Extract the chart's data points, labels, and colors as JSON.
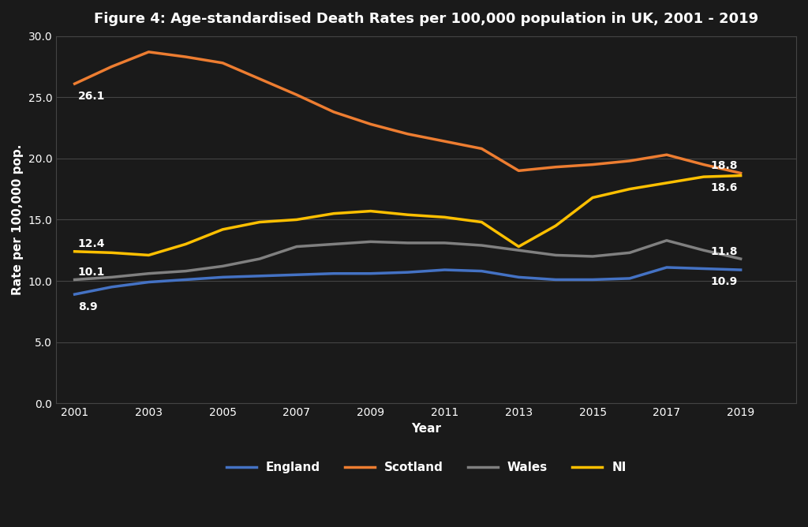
{
  "title": "Figure 4: Age-standardised Death Rates per 100,000 population in UK, 2001 - 2019",
  "xlabel": "Year",
  "ylabel": "Rate per 100,000 pop.",
  "years": [
    2001,
    2002,
    2003,
    2004,
    2005,
    2006,
    2007,
    2008,
    2009,
    2010,
    2011,
    2012,
    2013,
    2014,
    2015,
    2016,
    2017,
    2018,
    2019
  ],
  "England": [
    8.9,
    9.5,
    9.9,
    10.1,
    10.3,
    10.4,
    10.5,
    10.6,
    10.6,
    10.7,
    10.9,
    10.8,
    10.3,
    10.1,
    10.1,
    10.2,
    11.1,
    11.0,
    10.9
  ],
  "Scotland": [
    26.1,
    27.5,
    28.7,
    28.3,
    27.8,
    26.5,
    25.2,
    23.8,
    22.8,
    22.0,
    21.4,
    20.8,
    19.0,
    19.3,
    19.5,
    19.8,
    20.3,
    19.5,
    18.8
  ],
  "Wales": [
    10.1,
    10.3,
    10.6,
    10.8,
    11.2,
    11.8,
    12.8,
    13.0,
    13.2,
    13.1,
    13.1,
    12.9,
    12.5,
    12.1,
    12.0,
    12.3,
    13.3,
    12.5,
    11.8
  ],
  "NI": [
    12.4,
    12.3,
    12.1,
    13.0,
    14.2,
    14.8,
    15.0,
    15.5,
    15.7,
    15.4,
    15.2,
    14.8,
    12.8,
    14.5,
    16.8,
    17.5,
    18.0,
    18.5,
    18.6
  ],
  "England_color": "#4472c4",
  "Scotland_color": "#ed7d31",
  "Wales_color": "#808080",
  "NI_color": "#ffc000",
  "background_color": "#1a1a1a",
  "plot_area_color": "#1a1a1a",
  "text_color": "#ffffff",
  "grid_color": "#444444",
  "ylim": [
    0.0,
    30.0
  ],
  "yticks": [
    0.0,
    5.0,
    10.0,
    15.0,
    20.0,
    25.0,
    30.0
  ],
  "xticks": [
    2001,
    2003,
    2005,
    2007,
    2009,
    2011,
    2013,
    2015,
    2017,
    2019
  ],
  "start_label_England": "8.9",
  "start_label_Scotland": "26.1",
  "start_label_Wales": "10.1",
  "start_label_NI": "12.4",
  "end_label_England": "10.9",
  "end_label_Scotland": "18.8",
  "end_label_Wales": "11.8",
  "end_label_NI": "18.6",
  "linewidth": 2.5,
  "annotation_fontsize": 10,
  "label_fontsize": 11,
  "title_fontsize": 13,
  "tick_fontsize": 10
}
